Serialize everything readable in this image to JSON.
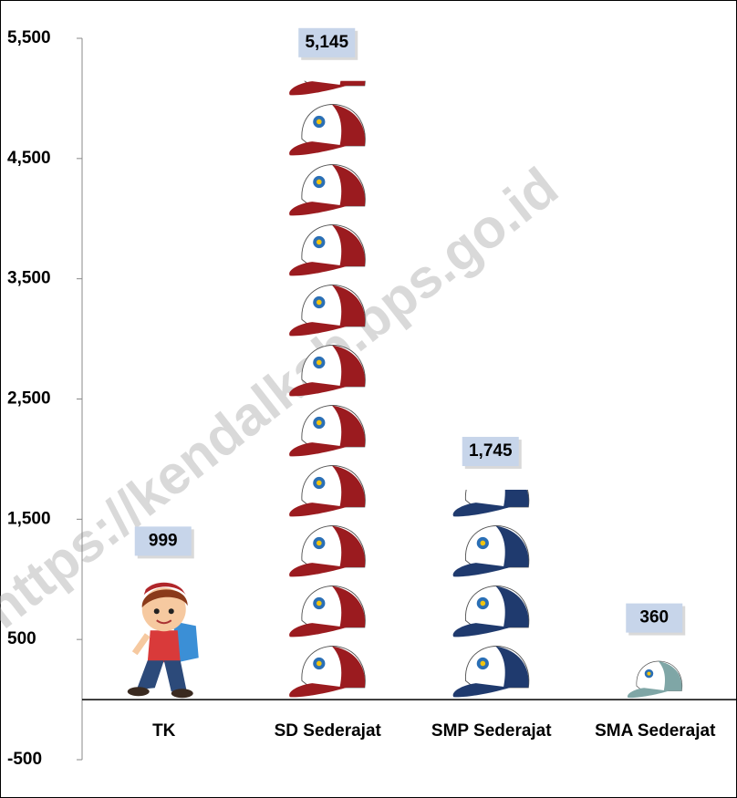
{
  "chart_data": {
    "type": "pictograph",
    "categories": [
      "TK",
      "SD Sederajat",
      "SMP Sederajat",
      "SMA Sederajat"
    ],
    "values": [
      999,
      5145,
      1745,
      360
    ],
    "value_labels": [
      "999",
      "5,145",
      "1,745",
      "360"
    ],
    "colors": [
      "#c0392b",
      "#9b1b1f",
      "#1f3a6e",
      "#7fa6a6"
    ],
    "ylim": [
      -500,
      5500
    ],
    "yticks": [
      -500,
      500,
      {
        "value": 1500,
        "label": "1,500"
      },
      {
        "value": 2500,
        "label": "2,500"
      },
      {
        "value": 3500,
        "label": "3,500"
      },
      {
        "value": 4500,
        "label": "4,500"
      },
      {
        "value": 5500,
        "label": "5,500"
      }
    ],
    "watermark": "https://kendalkab.bps.go.id"
  }
}
